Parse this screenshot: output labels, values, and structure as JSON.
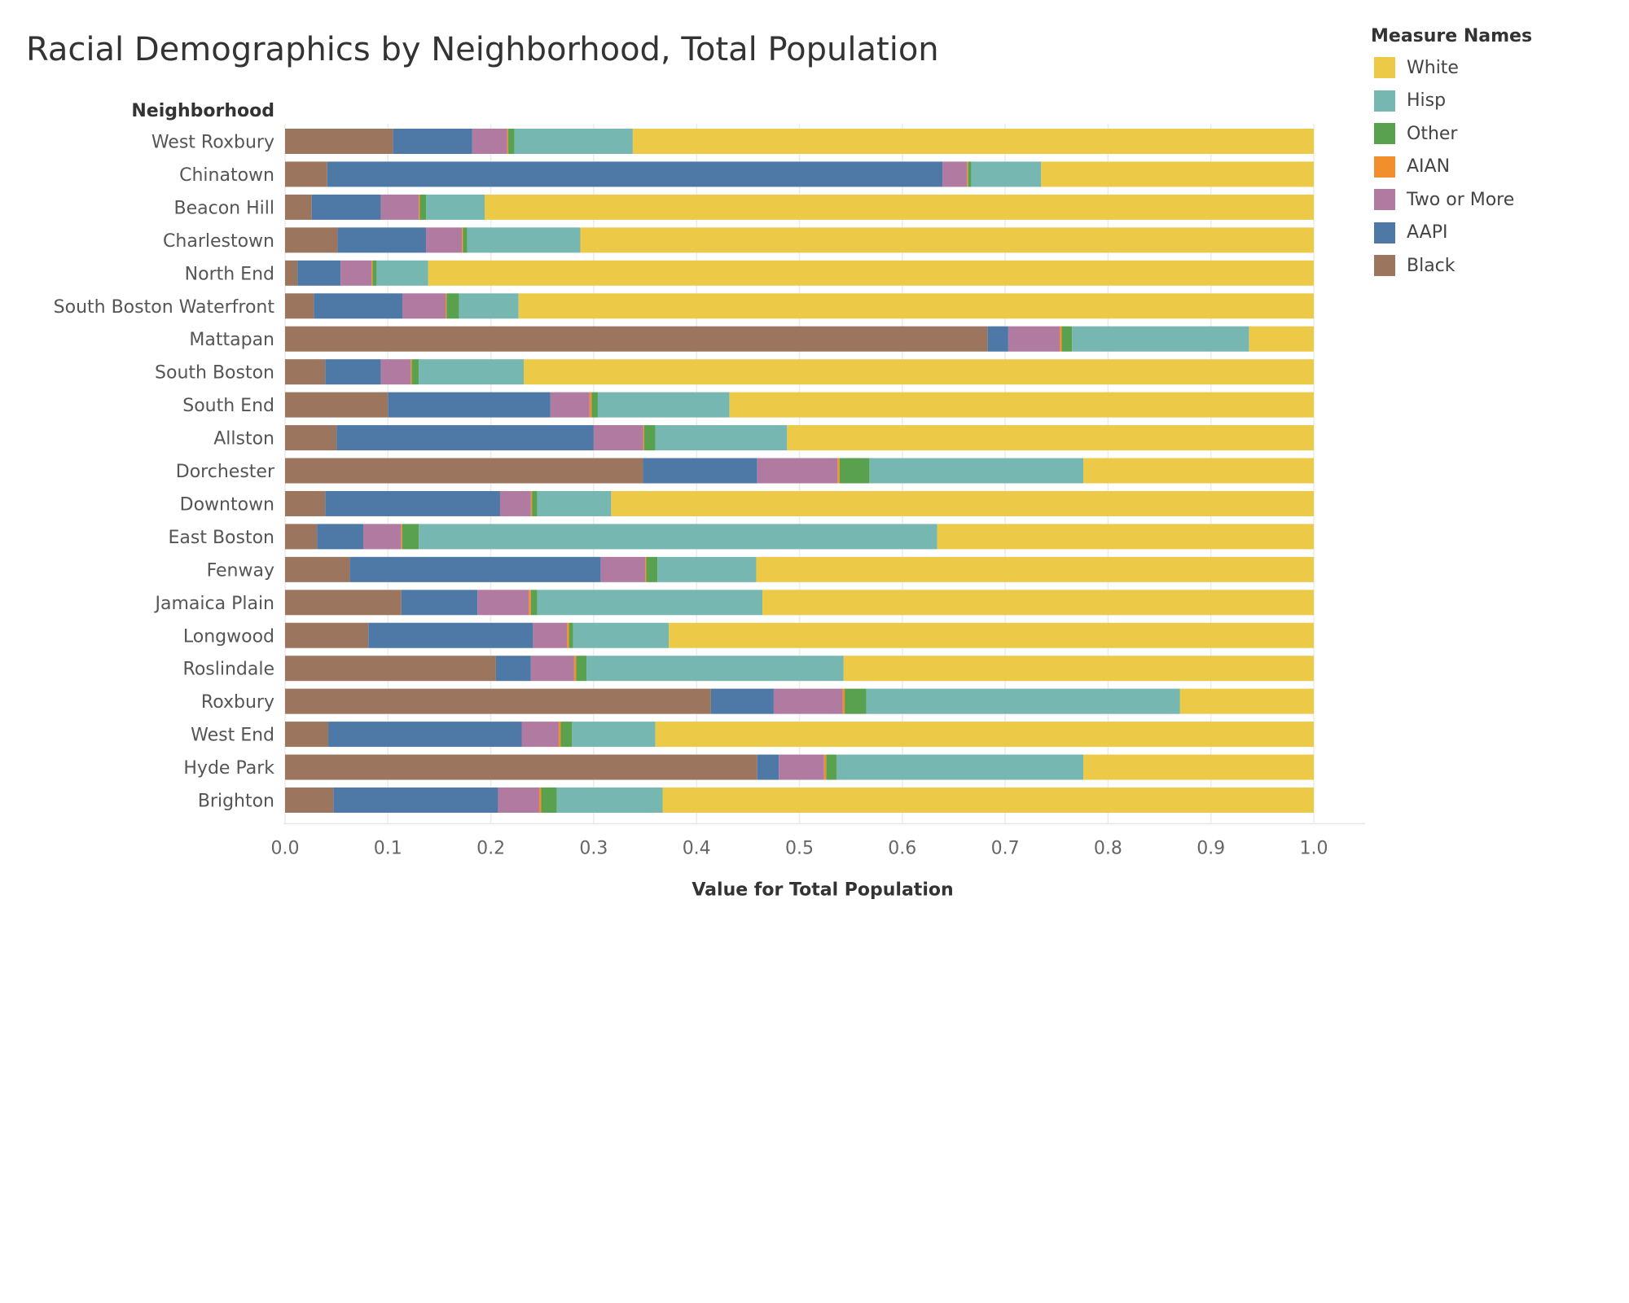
{
  "chart_data": {
    "type": "bar",
    "orientation": "horizontal",
    "stacked": true,
    "title": "Racial Demographics by Neighborhood, Total Population",
    "ylabel": "Neighborhood",
    "xlabel": "Value for Total Population",
    "xlim": [
      0,
      1
    ],
    "x_ticks": [
      "0.0",
      "0.1",
      "0.2",
      "0.3",
      "0.4",
      "0.5",
      "0.6",
      "0.7",
      "0.8",
      "0.9",
      "1.0"
    ],
    "grid": true,
    "legend_title": "Measure Names",
    "legend_position": "top-right",
    "categories": [
      "West Roxbury",
      "Chinatown",
      "Beacon Hill",
      "Charlestown",
      "North End",
      "South Boston Waterfront",
      "Mattapan",
      "South Boston",
      "South End",
      "Allston",
      "Dorchester",
      "Downtown",
      "East Boston",
      "Fenway",
      "Jamaica Plain",
      "Longwood",
      "Roslindale",
      "Roxbury",
      "West End",
      "Hyde Park",
      "Brighton"
    ],
    "series": [
      {
        "name": "Black",
        "color": "#9c755f",
        "values": [
          0.105,
          0.041,
          0.026,
          0.051,
          0.012,
          0.028,
          0.683,
          0.039,
          0.1,
          0.05,
          0.348,
          0.039,
          0.031,
          0.063,
          0.113,
          0.081,
          0.205,
          0.414,
          0.042,
          0.459,
          0.047
        ]
      },
      {
        "name": "AAPI",
        "color": "#4e79a7",
        "values": [
          0.077,
          0.598,
          0.067,
          0.086,
          0.042,
          0.086,
          0.02,
          0.054,
          0.158,
          0.25,
          0.111,
          0.17,
          0.045,
          0.244,
          0.074,
          0.16,
          0.034,
          0.061,
          0.188,
          0.021,
          0.16
        ]
      },
      {
        "name": "Two or More",
        "color": "#b07aa1",
        "values": [
          0.034,
          0.024,
          0.037,
          0.035,
          0.03,
          0.042,
          0.05,
          0.029,
          0.038,
          0.048,
          0.078,
          0.03,
          0.037,
          0.043,
          0.05,
          0.033,
          0.042,
          0.067,
          0.036,
          0.044,
          0.04
        ]
      },
      {
        "name": "AIAN",
        "color": "#f28e2b",
        "values": [
          0.001,
          0.001,
          0.001,
          0.001,
          0.001,
          0.001,
          0.002,
          0.001,
          0.002,
          0.001,
          0.002,
          0.001,
          0.001,
          0.001,
          0.002,
          0.002,
          0.002,
          0.002,
          0.002,
          0.002,
          0.002
        ]
      },
      {
        "name": "Other",
        "color": "#59a14f",
        "values": [
          0.006,
          0.003,
          0.006,
          0.004,
          0.004,
          0.012,
          0.01,
          0.007,
          0.006,
          0.011,
          0.029,
          0.005,
          0.016,
          0.011,
          0.006,
          0.004,
          0.01,
          0.021,
          0.011,
          0.01,
          0.015
        ]
      },
      {
        "name": "Hisp",
        "color": "#76b7b2",
        "values": [
          0.115,
          0.068,
          0.057,
          0.11,
          0.05,
          0.058,
          0.172,
          0.102,
          0.128,
          0.128,
          0.208,
          0.072,
          0.504,
          0.096,
          0.219,
          0.093,
          0.25,
          0.305,
          0.081,
          0.24,
          0.103
        ]
      },
      {
        "name": "White",
        "color": "#edc948",
        "values": [
          0.662,
          0.265,
          0.806,
          0.713,
          0.861,
          0.773,
          0.063,
          0.768,
          0.568,
          0.512,
          0.224,
          0.683,
          0.366,
          0.542,
          0.536,
          0.627,
          0.457,
          0.13,
          0.64,
          0.224,
          0.633
        ]
      }
    ],
    "legend_order": [
      "White",
      "Hisp",
      "Other",
      "AIAN",
      "Two or More",
      "AAPI",
      "Black"
    ]
  }
}
